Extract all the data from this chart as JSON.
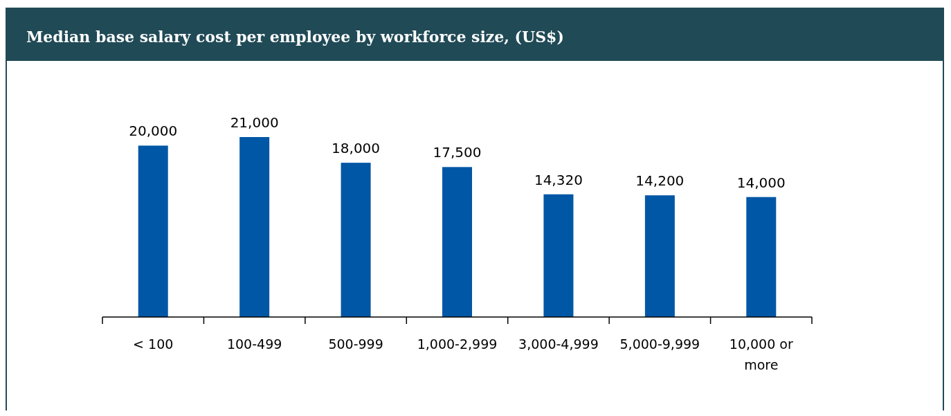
{
  "chart_data": {
    "type": "bar",
    "title": "Median base salary cost per employee by workforce size, (US$)",
    "categories": [
      "< 100",
      "100-499",
      "500-999",
      "1,000-2,999",
      "3,000-4,999",
      "5,000-9,999",
      "10,000 or more"
    ],
    "values": [
      20000,
      21000,
      18000,
      17500,
      14320,
      14200,
      14000
    ],
    "value_labels": [
      "20,000",
      "21,000",
      "18,000",
      "17,500",
      "14,320",
      "14,200",
      "14,000"
    ],
    "color": "#0057a5"
  }
}
